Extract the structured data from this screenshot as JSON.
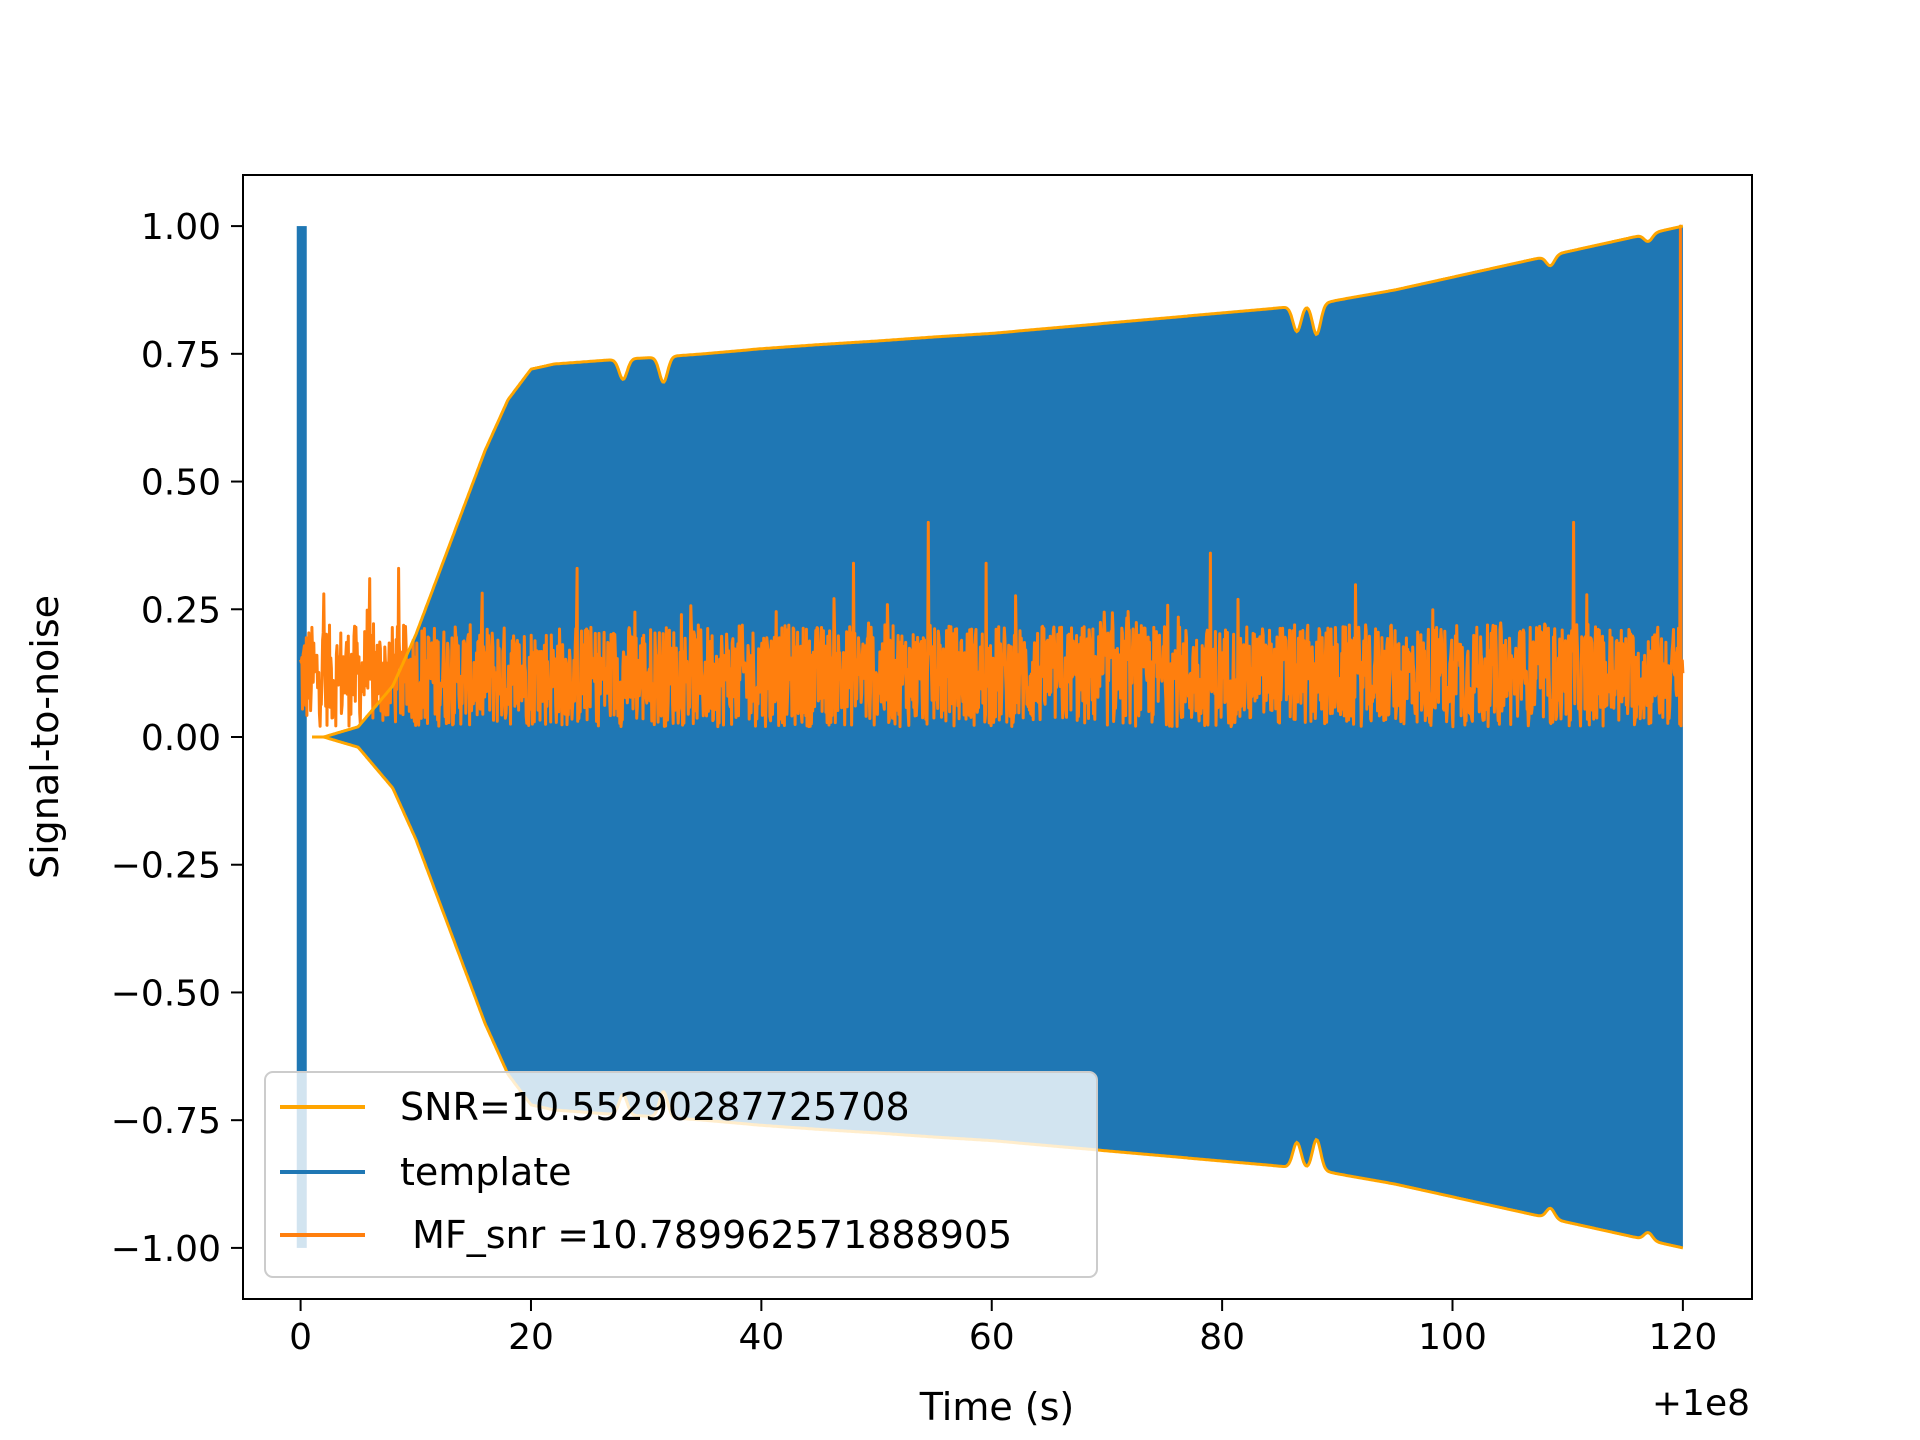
{
  "chart_data": {
    "type": "line",
    "title": "",
    "xlabel": "Time (s)",
    "ylabel": "Signal-to-noise",
    "x_offset_label": "+1e8",
    "xlim": [
      -5,
      126
    ],
    "ylim": [
      -1.1,
      1.1
    ],
    "xticks": [
      0,
      20,
      40,
      60,
      80,
      100,
      120
    ],
    "xtick_labels": [
      "0",
      "20",
      "40",
      "60",
      "80",
      "100",
      "120"
    ],
    "yticks": [
      1.0,
      0.75,
      0.5,
      0.25,
      0.0,
      -0.25,
      -0.5,
      -0.75,
      -1.0
    ],
    "ytick_labels": [
      "1.00",
      "0.75",
      "0.50",
      "0.25",
      "0.00",
      "−0.25",
      "−0.50",
      "−0.75",
      "−1.00"
    ],
    "grid": false,
    "legend_position": "lower-left",
    "series": [
      {
        "name": "SNR=10.55290287725708",
        "color": "#FFA500",
        "kind": "envelope",
        "x": [
          0,
          2,
          5,
          8,
          10,
          13,
          16,
          18,
          20,
          22,
          25,
          28,
          30,
          32,
          35,
          40,
          45,
          50,
          55,
          60,
          65,
          70,
          75,
          80,
          85,
          87,
          89,
          90,
          95,
          100,
          105,
          110,
          115,
          120
        ],
        "upper": [
          0.0,
          0.0,
          0.02,
          0.1,
          0.2,
          0.38,
          0.56,
          0.66,
          0.72,
          0.73,
          0.735,
          0.74,
          0.742,
          0.745,
          0.75,
          0.76,
          0.768,
          0.775,
          0.783,
          0.79,
          0.8,
          0.81,
          0.82,
          0.83,
          0.84,
          0.845,
          0.85,
          0.855,
          0.875,
          0.9,
          0.925,
          0.95,
          0.975,
          1.0
        ],
        "lower": [
          0.0,
          0.0,
          -0.02,
          -0.1,
          -0.2,
          -0.38,
          -0.56,
          -0.66,
          -0.72,
          -0.73,
          -0.735,
          -0.74,
          -0.742,
          -0.745,
          -0.75,
          -0.76,
          -0.768,
          -0.775,
          -0.783,
          -0.79,
          -0.8,
          -0.81,
          -0.82,
          -0.83,
          -0.84,
          -0.845,
          -0.85,
          -0.855,
          -0.875,
          -0.9,
          -0.925,
          -0.95,
          -0.975,
          -1.0
        ]
      },
      {
        "name": "template",
        "color": "#1F77B4",
        "kind": "oscillation",
        "same_envelope_as": "SNR=10.55290287725708",
        "spike_at_x": 0.1,
        "spike_range": [
          -1.0,
          1.0
        ]
      },
      {
        "name": " MF_snr =10.789962571888905",
        "color": "#FF7F0E",
        "kind": "noise",
        "baseline_range": [
          0.02,
          0.22
        ],
        "notable_peaks": [
          {
            "x": 2,
            "y": 0.28
          },
          {
            "x": 6,
            "y": 0.31
          },
          {
            "x": 8.5,
            "y": 0.33
          },
          {
            "x": 24,
            "y": 0.33
          },
          {
            "x": 48,
            "y": 0.34
          },
          {
            "x": 54.5,
            "y": 0.42
          },
          {
            "x": 59.5,
            "y": 0.34
          },
          {
            "x": 79,
            "y": 0.36
          },
          {
            "x": 110.5,
            "y": 0.42
          },
          {
            "x": 119.8,
            "y": 1.0
          }
        ],
        "x_range": [
          0,
          120
        ]
      }
    ]
  }
}
